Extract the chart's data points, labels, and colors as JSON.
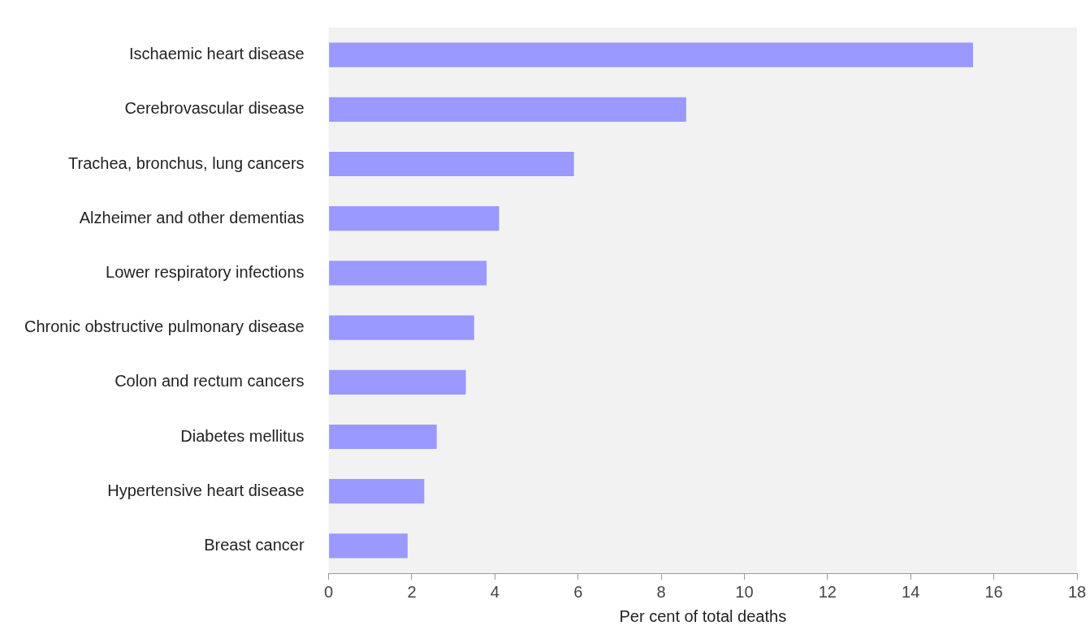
{
  "chart_data": {
    "type": "bar",
    "orientation": "horizontal",
    "xlabel": "Per cent of total deaths",
    "categories": [
      "Ischaemic heart disease",
      "Cerebrovascular disease",
      "Trachea, bronchus, lung cancers",
      "Alzheimer and other dementias",
      "Lower respiratory infections",
      "Chronic obstructive pulmonary disease",
      "Colon and rectum cancers",
      "Diabetes mellitus",
      "Hypertensive heart disease",
      "Breast cancer"
    ],
    "values": [
      15.5,
      8.6,
      5.9,
      4.1,
      3.8,
      3.5,
      3.3,
      2.6,
      2.3,
      1.9
    ],
    "color": "#9999ff",
    "xlim": [
      0,
      18
    ],
    "xticks": [
      0,
      2,
      4,
      6,
      8,
      10,
      12,
      14,
      16,
      18
    ],
    "grid": false,
    "legend": false
  }
}
